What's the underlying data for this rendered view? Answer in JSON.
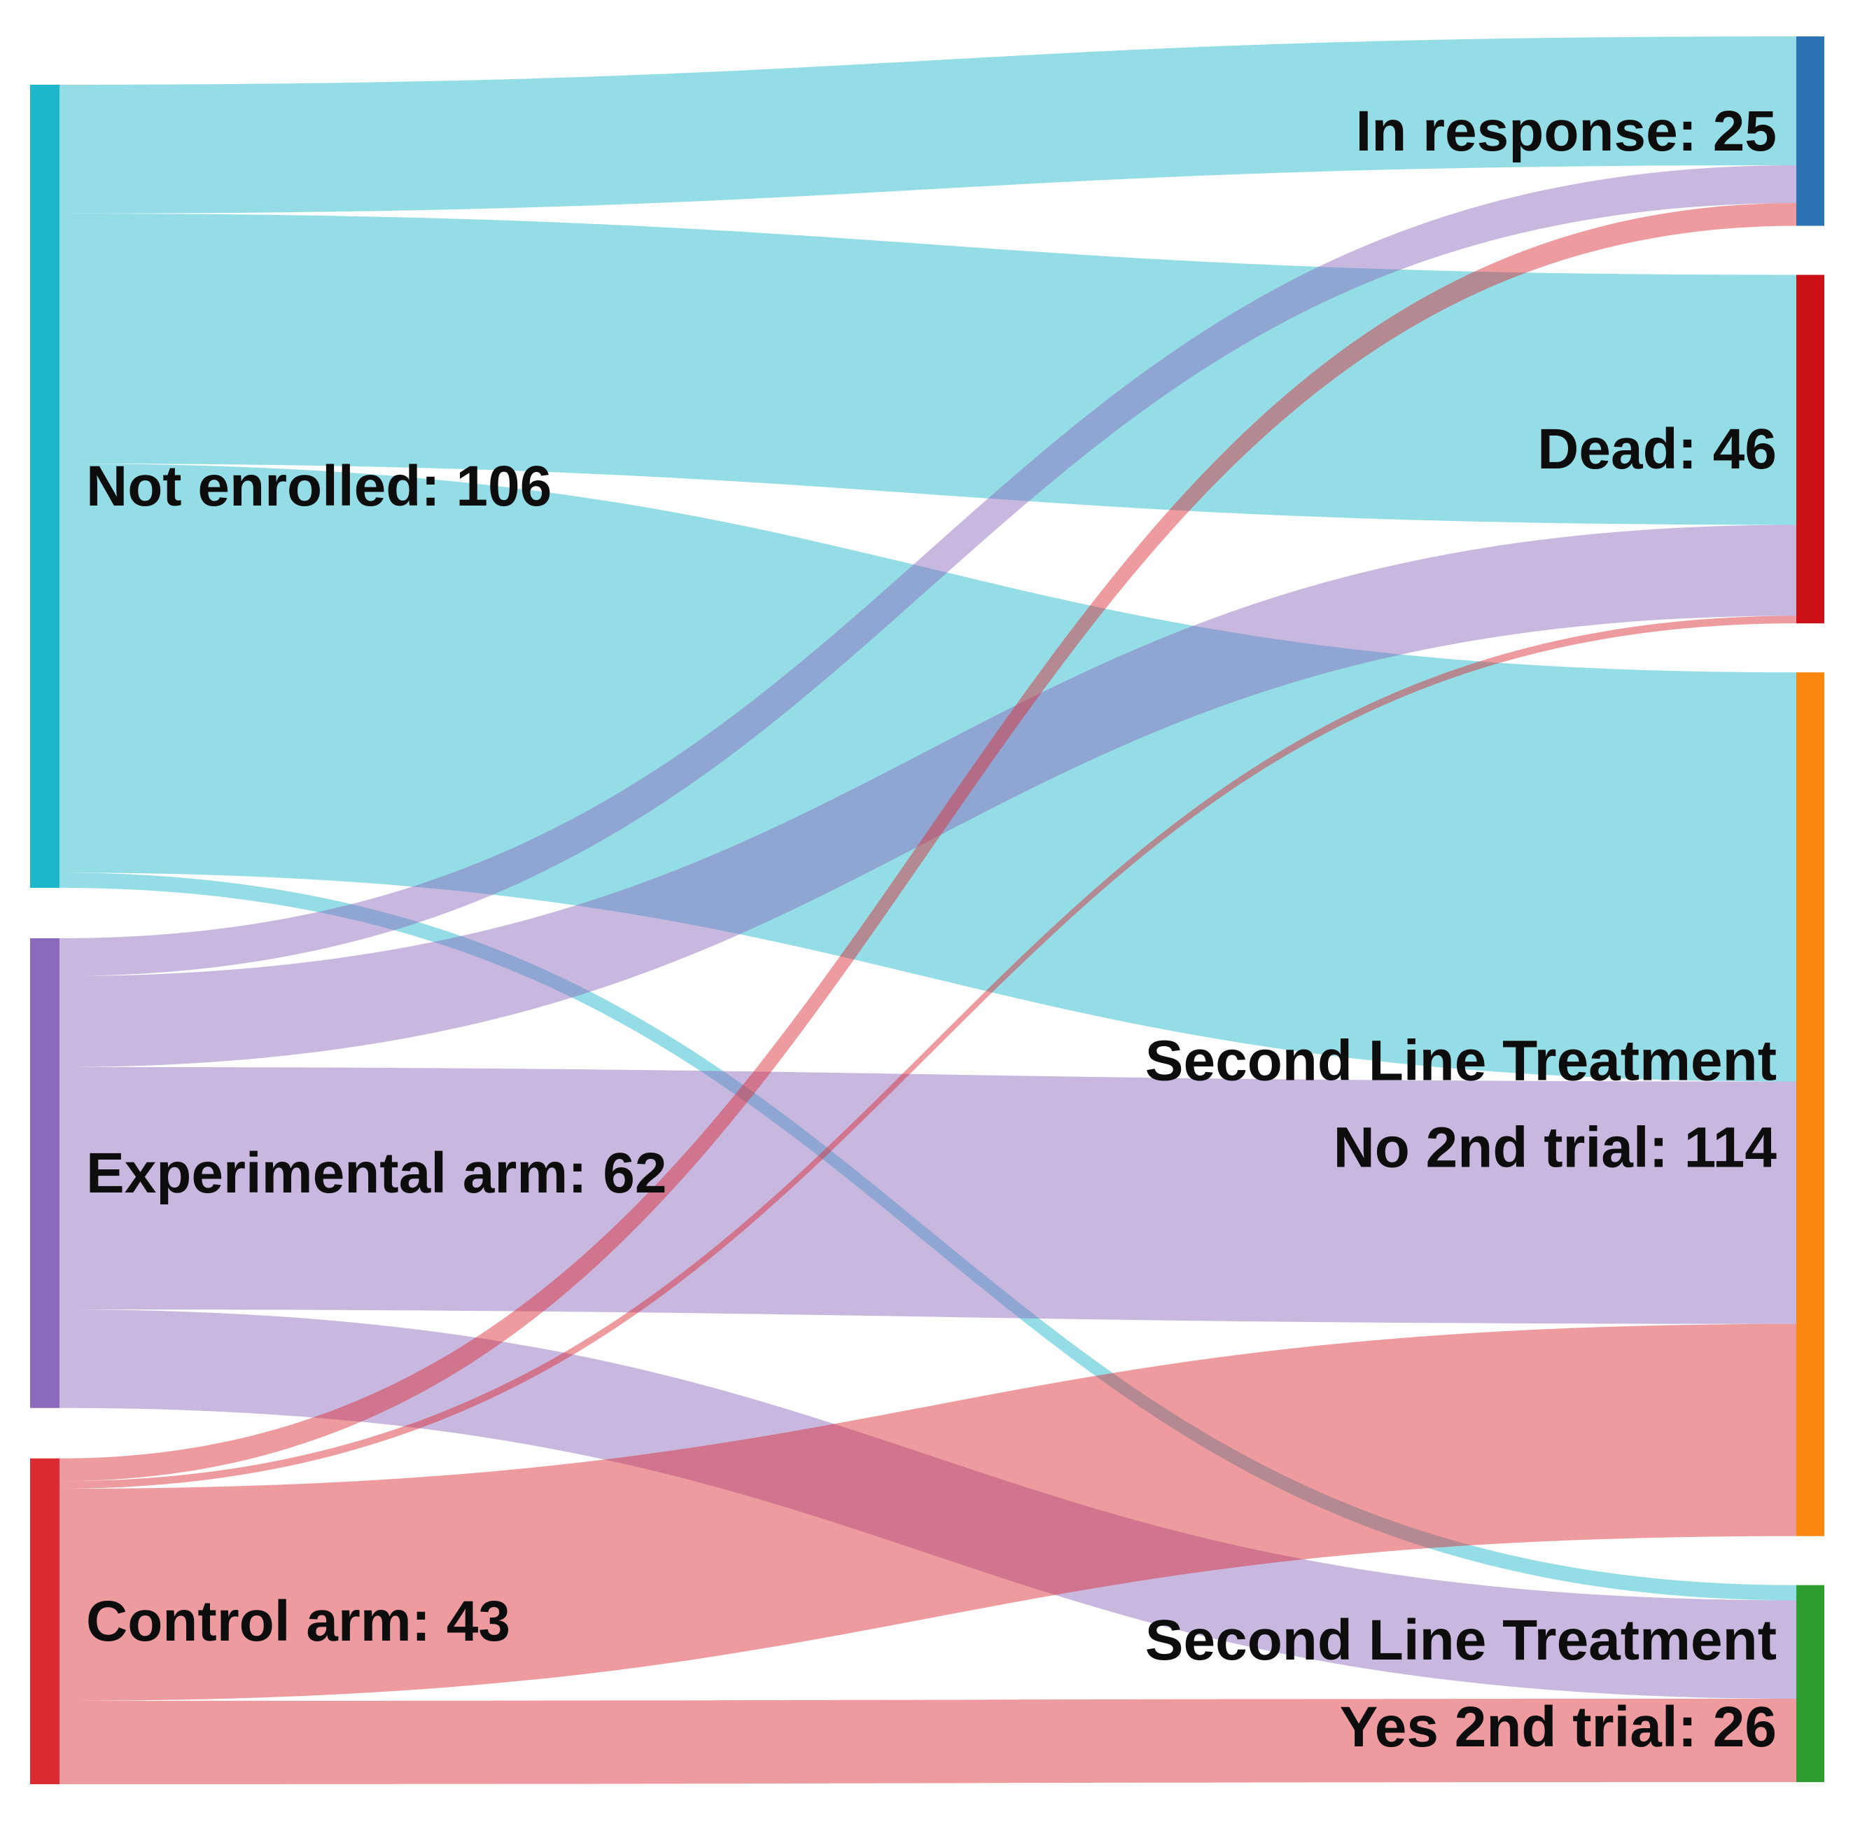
{
  "figure": {
    "kind": "sankey-flow-diagram",
    "background": "#ffffff",
    "text_color": "#0d0d0d"
  },
  "chart_data": {
    "type": "sankey",
    "orientation": "left-to-right",
    "link_opacity": 0.47,
    "nodes": [
      {
        "id": "not_enrolled",
        "label": "Not enrolled: 106",
        "value": 106,
        "side": "left",
        "color": "#1eb6c9"
      },
      {
        "id": "experimental",
        "label": "Experimental arm: 62",
        "value": 62,
        "side": "left",
        "color": "#8b69bb"
      },
      {
        "id": "control",
        "label": "Control arm: 43",
        "value": 43,
        "side": "left",
        "color": "#d92b31"
      },
      {
        "id": "in_response",
        "label": "In response: 25",
        "value": 25,
        "side": "right",
        "color": "#2c73b4"
      },
      {
        "id": "dead",
        "label": "Dead: 46",
        "value": 46,
        "side": "right",
        "color": "#cb1016"
      },
      {
        "id": "no_2nd_trial",
        "label": [
          "Second Line Treatment",
          "No 2nd trial: 114"
        ],
        "value": 114,
        "side": "right",
        "color": "#f8860f"
      },
      {
        "id": "yes_2nd_trial",
        "label": [
          "Second Line Treatment",
          "Yes 2nd trial: 26"
        ],
        "value": 26,
        "side": "right",
        "color": "#2f9e31"
      }
    ],
    "links": [
      {
        "source": "not_enrolled",
        "target": "in_response",
        "value": 17
      },
      {
        "source": "not_enrolled",
        "target": "dead",
        "value": 33
      },
      {
        "source": "not_enrolled",
        "target": "no_2nd_trial",
        "value": 54
      },
      {
        "source": "not_enrolled",
        "target": "yes_2nd_trial",
        "value": 2
      },
      {
        "source": "experimental",
        "target": "in_response",
        "value": 5
      },
      {
        "source": "experimental",
        "target": "dead",
        "value": 12
      },
      {
        "source": "experimental",
        "target": "no_2nd_trial",
        "value": 32
      },
      {
        "source": "experimental",
        "target": "yes_2nd_trial",
        "value": 13
      },
      {
        "source": "control",
        "target": "in_response",
        "value": 3
      },
      {
        "source": "control",
        "target": "dead",
        "value": 1
      },
      {
        "source": "control",
        "target": "no_2nd_trial",
        "value": 28
      },
      {
        "source": "control",
        "target": "yes_2nd_trial",
        "value": 11
      }
    ]
  }
}
